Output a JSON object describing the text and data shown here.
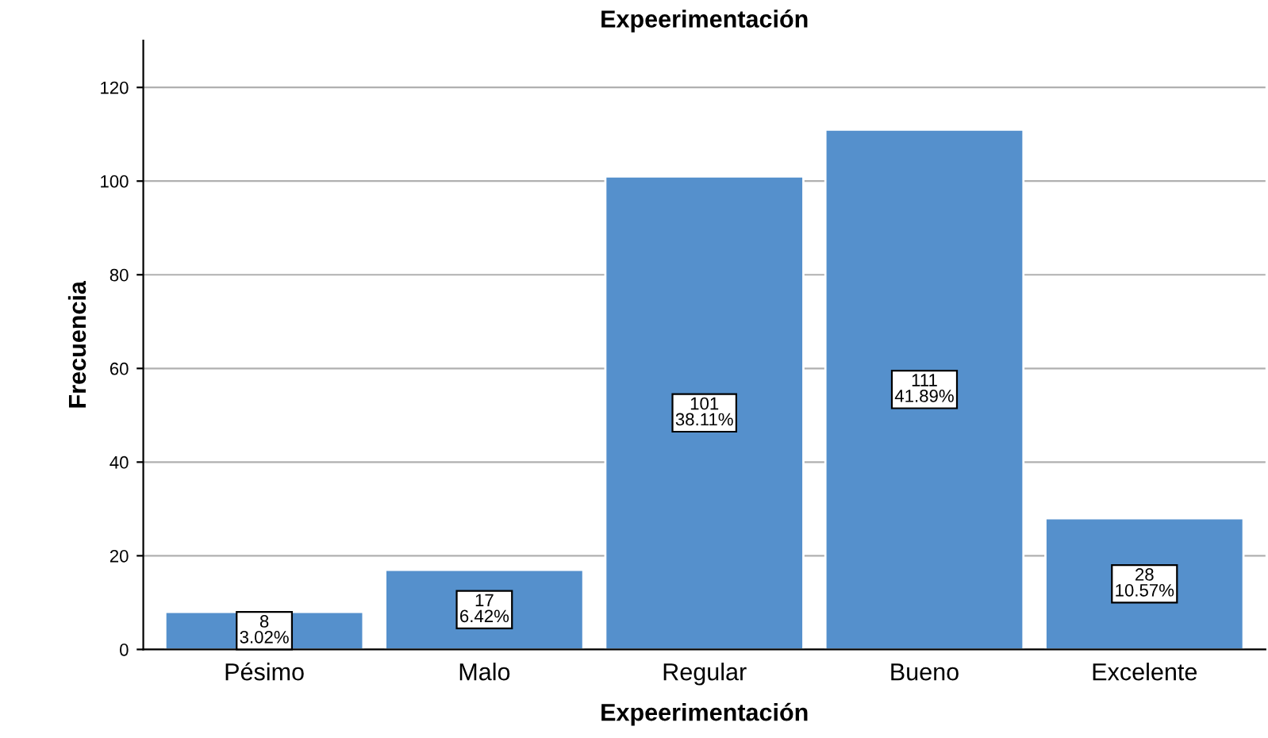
{
  "chart_data": {
    "type": "bar",
    "title": "Expeerimentación",
    "xlabel": "Expeerimentación",
    "ylabel": "Frecuencia",
    "categories": [
      "Pésimo",
      "Malo",
      "Regular",
      "Bueno",
      "Excelente"
    ],
    "values": [
      8,
      17,
      101,
      111,
      28
    ],
    "value_labels": [
      "8\n3.02%",
      "17\n6.42%",
      "101\n38.11%",
      "111\n41.89%",
      "28\n10.57%"
    ],
    "color": "#5590cc",
    "ylim": [
      0,
      130
    ],
    "yticks": [
      0,
      20,
      40,
      60,
      80,
      100,
      120
    ],
    "grid": "y"
  }
}
